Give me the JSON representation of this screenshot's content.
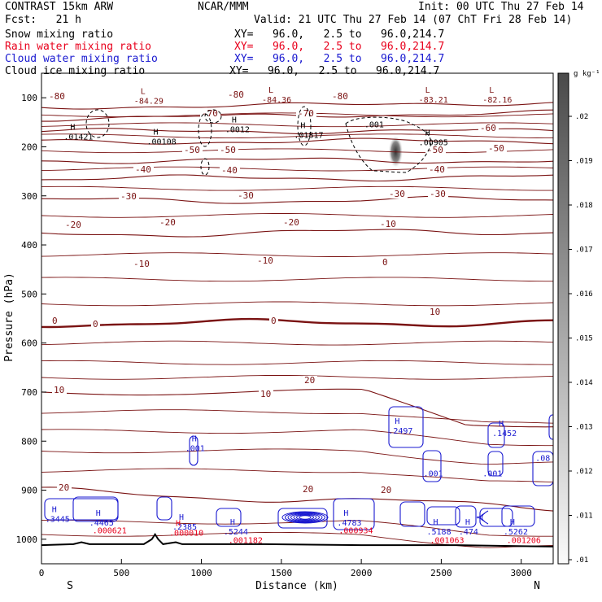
{
  "header": {
    "model": "CONTRAST 15km ARW",
    "center": "NCAR/MMM",
    "init": "Init: 00 UTC Thu 27 Feb 14",
    "fcst": "Fcst:   21 h",
    "valid": "Valid: 21 UTC Thu 27 Feb 14 (07 ChT Fri 28 Feb 14)"
  },
  "fields": [
    {
      "name": "Snow mixing ratio",
      "xy": "XY=   96.0,   2.5 to   96.0,214.7",
      "color": "#000000"
    },
    {
      "name": "Rain water mixing ratio",
      "xy": "XY=   96.0,   2.5 to   96.0,214.7",
      "color": "#e8001c"
    },
    {
      "name": "Cloud water mixing ratio",
      "xy": "XY=   96.0,   2.5 to   96.0,214.7",
      "color": "#1818d0"
    },
    {
      "name": "Cloud ice mixing ratio",
      "xy": "XY=   96.0,   2.5 to   96.0,214.7",
      "color": "#000000"
    }
  ],
  "chart_data": {
    "type": "contour",
    "xlabel": "Distance (km)",
    "ylabel": "Pressure (hPa)",
    "xlim": [
      0,
      3200
    ],
    "ylim": [
      1050,
      50
    ],
    "xticks": [
      0,
      500,
      1000,
      1500,
      2000,
      2500,
      3000
    ],
    "yticks": [
      100,
      200,
      300,
      400,
      500,
      600,
      700,
      800,
      900,
      1000
    ],
    "x_end_labels": {
      "left": "S",
      "right": "N"
    },
    "colorbar": {
      "unit": "g kg⁻¹",
      "ticks": [
        ".02",
        ".019",
        ".018",
        ".017",
        ".016",
        ".015",
        ".014",
        ".013",
        ".012",
        ".011",
        ".01"
      ]
    },
    "temperature_contours": {
      "color": "#7a1212",
      "levels": [
        {
          "value": -80,
          "p_west": 120,
          "p_east": 110
        },
        {
          "value": -70,
          "p_west": 143,
          "p_east": 130
        },
        {
          "value": -60,
          "p_west": 168,
          "p_east": 168
        },
        {
          "value": -50,
          "p_west": 190,
          "p_east": 188
        },
        {
          "value": -40,
          "p_west": 228,
          "p_east": 228
        },
        {
          "value": -30,
          "p_west": 265,
          "p_east": 262
        },
        {
          "value": -20,
          "p_west": 310,
          "p_east": 308
        },
        {
          "value": -10,
          "p_west": 378,
          "p_east": 372
        },
        {
          "value": 0,
          "p_west": 560,
          "p_east": 558
        },
        {
          "value": 10,
          "p_west": 700,
          "p_east": 765
        },
        {
          "value": 20,
          "p_west": 902,
          "p_east": 935
        }
      ],
      "labels": [
        "-80",
        "-80",
        "-80",
        "-70",
        "-70",
        "-60",
        "-50",
        "-50",
        "-50",
        "-50",
        "-40",
        "-40",
        "-40",
        "-30",
        "-30",
        "-30",
        "-30",
        "-20",
        "-20",
        "-20",
        "-10",
        "-10",
        "-10",
        "0",
        "0",
        "0",
        "0",
        "10",
        "10",
        "10",
        "20",
        "20",
        "20",
        "20"
      ]
    },
    "extrema": [
      {
        "kind": "L",
        "label": "-84.29",
        "x": 640,
        "p": 112,
        "color": "#7a1212"
      },
      {
        "kind": "L",
        "label": "-84.36",
        "x": 1440,
        "p": 110,
        "color": "#7a1212"
      },
      {
        "kind": "L",
        "label": "-83.21",
        "x": 2420,
        "p": 110,
        "color": "#7a1212"
      },
      {
        "kind": "L",
        "label": "-82.16",
        "x": 2820,
        "p": 110,
        "color": "#7a1212"
      },
      {
        "kind": "H",
        "label": ".01421",
        "x": 200,
        "p": 185,
        "color": "#000000"
      },
      {
        "kind": "H",
        "label": ".00108",
        "x": 720,
        "p": 195,
        "color": "#000000"
      },
      {
        "kind": "H",
        "label": ".0012",
        "x": 1210,
        "p": 170,
        "color": "#000000"
      },
      {
        "kind": "H",
        "label": ".01817",
        "x": 1640,
        "p": 182,
        "color": "#000000"
      },
      {
        "kind": "H",
        "label": ".00905",
        "x": 2420,
        "p": 197,
        "color": "#000000"
      },
      {
        "kind": "",
        "label": ".001",
        "x": 2080,
        "p": 160,
        "color": "#000000"
      },
      {
        "kind": "H",
        "label": ".2497",
        "x": 2230,
        "p": 785,
        "color": "#1818d0"
      },
      {
        "kind": "H",
        "label": ".1452",
        "x": 2880,
        "p": 790,
        "color": "#1818d0"
      },
      {
        "kind": "H",
        "label": ".001",
        "x": 960,
        "p": 820,
        "color": "#1818d0"
      },
      {
        "kind": "",
        "label": ".001",
        "x": 2450,
        "p": 872,
        "color": "#1818d0"
      },
      {
        "kind": "",
        "label": ".001",
        "x": 2820,
        "p": 872,
        "color": "#1818d0"
      },
      {
        "kind": "",
        "label": ".08",
        "x": 3150,
        "p": 840,
        "color": "#1818d0"
      },
      {
        "kind": "H",
        "label": ".3445",
        "x": 85,
        "p": 965,
        "color": "#1818d0"
      },
      {
        "kind": "H",
        "label": ".4465",
        "x": 360,
        "p": 972,
        "color": "#1818d0"
      },
      {
        "kind": "H",
        "label": ".2385",
        "x": 880,
        "p": 980,
        "color": "#1818d0"
      },
      {
        "kind": "H",
        "label": ".5244",
        "x": 1200,
        "p": 990,
        "color": "#1818d0"
      },
      {
        "kind": "H",
        "label": ".4783",
        "x": 1910,
        "p": 972,
        "color": "#1818d0"
      },
      {
        "kind": "H",
        "label": ".5188",
        "x": 2470,
        "p": 990,
        "color": "#1818d0"
      },
      {
        "kind": "H",
        "label": ".474",
        "x": 2670,
        "p": 990,
        "color": "#1818d0"
      },
      {
        "kind": "H",
        "label": ".5262",
        "x": 2950,
        "p": 990,
        "color": "#1818d0"
      },
      {
        "kind": "",
        "label": ".000621",
        "x": 380,
        "p": 988,
        "color": "#e8001c"
      },
      {
        "kind": "H",
        "label": ".000010",
        "x": 860,
        "p": 993,
        "color": "#e8001c"
      },
      {
        "kind": "",
        "label": ".001182",
        "x": 1230,
        "p": 1008,
        "color": "#e8001c"
      },
      {
        "kind": "",
        "label": ".000934",
        "x": 1920,
        "p": 988,
        "color": "#e8001c"
      },
      {
        "kind": "",
        "label": ".001063",
        "x": 2490,
        "p": 1008,
        "color": "#e8001c"
      },
      {
        "kind": "",
        "label": ".001206",
        "x": 2970,
        "p": 1008,
        "color": "#e8001c"
      }
    ],
    "snow_max": {
      "x": 2215,
      "p": 210,
      "value": 0.0195
    }
  }
}
